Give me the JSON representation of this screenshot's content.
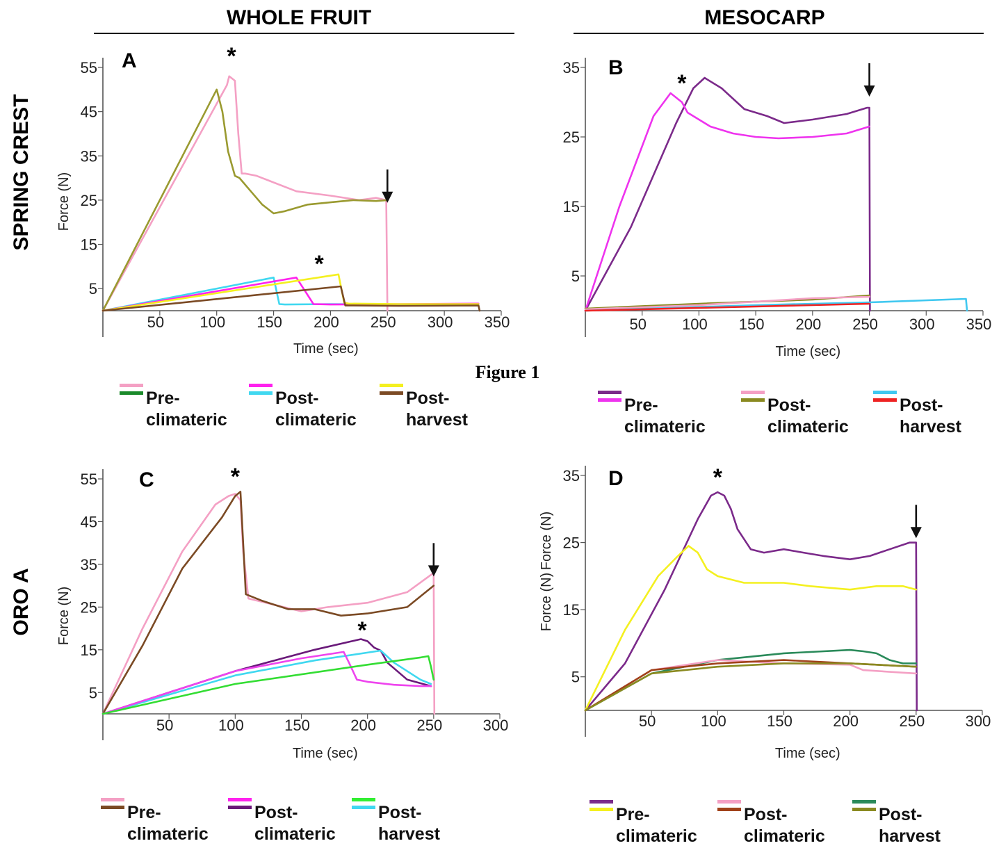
{
  "headers": {
    "left": "WHOLE FRUIT",
    "right": "MESOCARP"
  },
  "row_labels": {
    "top": "SPRING CREST",
    "bottom": "ORO A"
  },
  "figure_caption": "Figure 1",
  "chart_data": [
    {
      "panel": "A",
      "type": "line",
      "xlabel": "Time (sec)",
      "ylabel": "Force (N)",
      "xlim": [
        0,
        350
      ],
      "ylim": [
        0,
        55
      ],
      "xticks": [
        50,
        100,
        150,
        200,
        250,
        300,
        350
      ],
      "yticks": [
        5,
        15,
        25,
        35,
        45,
        55
      ],
      "annotations": [
        {
          "label": "*",
          "x": 113,
          "y": 58
        },
        {
          "label": "*",
          "x": 190,
          "y": 11
        },
        {
          "label": "↓",
          "x": 250,
          "y": 31
        }
      ],
      "legend": [
        {
          "label": "Pre-\nclimateric",
          "colors": [
            "#f4a0c4",
            "#1a8a2a"
          ]
        },
        {
          "label": "Post-\nclimateric",
          "colors": [
            "#ff22ee",
            "#40d8f0"
          ]
        },
        {
          "label": "Post-\nharvest",
          "colors": [
            "#f4f020",
            "#7b4a24"
          ]
        }
      ],
      "series": [
        {
          "color": "#f4a0c4",
          "x": [
            0,
            109,
            111,
            116,
            119,
            122,
            125,
            135,
            150,
            170,
            200,
            225,
            240,
            249,
            250
          ],
          "y": [
            0,
            51,
            53,
            52,
            40,
            31,
            31,
            30.5,
            29,
            27,
            26,
            25,
            25.5,
            25,
            0
          ]
        },
        {
          "color": "#9a9a30",
          "x": [
            0,
            100,
            102,
            105,
            110,
            116,
            120,
            130,
            140,
            150,
            160,
            180,
            200,
            220,
            240,
            250
          ],
          "y": [
            0,
            50,
            48,
            45,
            36,
            30.5,
            30,
            27,
            24,
            22,
            22.5,
            24,
            24.5,
            25,
            24.8,
            25
          ]
        },
        {
          "color": "#40d8f0",
          "x": [
            0,
            150,
            155,
            160,
            200,
            260,
            330
          ],
          "y": [
            0,
            7.5,
            1.5,
            1.4,
            1.5,
            1.4,
            1.5
          ]
        },
        {
          "color": "#ff22ee",
          "x": [
            0,
            170,
            180,
            185,
            200,
            260,
            330
          ],
          "y": [
            0,
            7.5,
            3.5,
            1.5,
            1.4,
            1.5,
            1.6
          ]
        },
        {
          "color": "#f4f020",
          "x": [
            0,
            207,
            212,
            216,
            260,
            330
          ],
          "y": [
            0,
            8.2,
            1.8,
            1.6,
            1.5,
            1.5
          ]
        },
        {
          "color": "#7b4a24",
          "x": [
            0,
            209,
            213,
            217,
            260,
            330,
            331
          ],
          "y": [
            0,
            5.5,
            1.2,
            1.2,
            1.1,
            1.2,
            0
          ]
        }
      ]
    },
    {
      "panel": "B",
      "type": "line",
      "xlabel": "Time (sec)",
      "ylabel": "Force (N)",
      "xlim": [
        0,
        350
      ],
      "ylim": [
        0,
        35
      ],
      "xticks": [
        50,
        100,
        150,
        200,
        250,
        300,
        350
      ],
      "yticks": [
        5,
        15,
        25,
        35
      ],
      "annotations": [
        {
          "label": "*",
          "x": 85,
          "y": 33
        },
        {
          "label": "↓",
          "x": 250,
          "y": 35
        }
      ],
      "legend": [
        {
          "label": "Pre-\nclimateric",
          "colors": [
            "#7b2a8a",
            "#ee33ee"
          ]
        },
        {
          "label": "Post-\nclimateric",
          "colors": [
            "#f4a0c4",
            "#8a8a20"
          ]
        },
        {
          "label": "Post-\nharvest",
          "colors": [
            "#40c8f0",
            "#ee2222"
          ]
        }
      ],
      "series": [
        {
          "color": "#7b2a8a",
          "x": [
            0,
            40,
            80,
            95,
            105,
            120,
            140,
            160,
            175,
            200,
            230,
            248,
            250,
            250.5
          ],
          "y": [
            0,
            12,
            27,
            32,
            33.5,
            32,
            29,
            28,
            27,
            27.5,
            28.3,
            29.2,
            29.2,
            0
          ]
        },
        {
          "color": "#ee33ee",
          "x": [
            0,
            30,
            60,
            75,
            85,
            90,
            110,
            130,
            150,
            170,
            200,
            230,
            250
          ],
          "y": [
            0,
            15,
            28,
            31.3,
            30,
            28.5,
            26.5,
            25.5,
            25,
            24.8,
            25,
            25.5,
            26.5
          ]
        },
        {
          "color": "#8a8a20",
          "x": [
            0,
            100,
            200,
            250
          ],
          "y": [
            0.3,
            1,
            1.6,
            2.2
          ]
        },
        {
          "color": "#f4a0c4",
          "x": [
            0,
            100,
            200,
            250
          ],
          "y": [
            0.2,
            0.8,
            1.8,
            2
          ]
        },
        {
          "color": "#40c8f0",
          "x": [
            0,
            150,
            250,
            335,
            336
          ],
          "y": [
            0,
            0.8,
            1.2,
            1.7,
            0
          ]
        },
        {
          "color": "#ee2222",
          "x": [
            0,
            150,
            250
          ],
          "y": [
            0,
            0.6,
            1
          ]
        }
      ]
    },
    {
      "panel": "C",
      "type": "line",
      "xlabel": "Time (sec)",
      "ylabel": "Force (N)",
      "xlim": [
        0,
        300
      ],
      "ylim": [
        0,
        55
      ],
      "xticks": [
        50,
        100,
        150,
        200,
        250,
        300
      ],
      "yticks": [
        5,
        15,
        25,
        35,
        45,
        55
      ],
      "annotations": [
        {
          "label": "*",
          "x": 100,
          "y": 56
        },
        {
          "label": "*",
          "x": 196,
          "y": 20
        },
        {
          "label": "↓",
          "x": 250,
          "y": 39
        }
      ],
      "legend": [
        {
          "label": "Pre-\nclimateric",
          "colors": [
            "#f4a0c4",
            "#7b4a24"
          ]
        },
        {
          "label": "Post-\nclimateric",
          "colors": [
            "#ff22ee",
            "#6a1a7a"
          ]
        },
        {
          "label": "Post-\nharvest",
          "colors": [
            "#33ee33",
            "#40d8f0"
          ]
        }
      ],
      "series": [
        {
          "color": "#f4a0c4",
          "x": [
            0,
            30,
            60,
            85,
            95,
            100,
            104,
            106,
            110,
            130,
            150,
            170,
            200,
            230,
            250,
            250.5
          ],
          "y": [
            0,
            20,
            38,
            49,
            51,
            51.5,
            50,
            38,
            27,
            25.5,
            24,
            25,
            26,
            28.5,
            33,
            0
          ]
        },
        {
          "color": "#7b4a24",
          "x": [
            0,
            30,
            60,
            90,
            100,
            104,
            106,
            108,
            120,
            140,
            160,
            180,
            200,
            230,
            250
          ],
          "y": [
            0,
            16,
            34,
            46,
            51,
            52,
            40,
            28,
            26.5,
            24.5,
            24.5,
            23,
            23.5,
            25,
            30
          ]
        },
        {
          "color": "#6a1a7a",
          "x": [
            0,
            100,
            160,
            195,
            200,
            205,
            210,
            215,
            230,
            248
          ],
          "y": [
            0,
            10,
            15,
            17.5,
            17,
            15.5,
            14.8,
            12,
            8,
            6.5
          ]
        },
        {
          "color": "#40d8f0",
          "x": [
            0,
            100,
            160,
            210,
            220,
            240,
            248
          ],
          "y": [
            0,
            9,
            12.5,
            14.8,
            12,
            8,
            7
          ]
        },
        {
          "color": "#ee44ee",
          "x": [
            0,
            100,
            150,
            182,
            186,
            192,
            200,
            220,
            240,
            248
          ],
          "y": [
            0,
            10,
            13,
            14.5,
            12,
            8,
            7.5,
            6.8,
            6.5,
            6.5
          ]
        },
        {
          "color": "#33dd33",
          "x": [
            0,
            100,
            200,
            240,
            246,
            248,
            250
          ],
          "y": [
            0,
            7,
            11.5,
            13.2,
            13.5,
            11,
            8
          ]
        }
      ]
    },
    {
      "panel": "D",
      "type": "line",
      "xlabel": "Time (sec)",
      "ylabel": "Force (N)",
      "xlim": [
        0,
        300
      ],
      "ylim": [
        0,
        35
      ],
      "xticks": [
        50,
        100,
        150,
        200,
        250,
        300
      ],
      "yticks": [
        5,
        15,
        25,
        35
      ],
      "annotations": [
        {
          "label": "*",
          "x": 100,
          "y": 35
        },
        {
          "label": "↓",
          "x": 250,
          "y": 30
        }
      ],
      "legend": [
        {
          "label": "Pre-\nclimateric",
          "colors": [
            "#7b2a8a",
            "#f4f020"
          ]
        },
        {
          "label": "Post-\nclimateric",
          "colors": [
            "#f4a0c4",
            "#a0421a"
          ]
        },
        {
          "label": "Post-\nharvest",
          "colors": [
            "#2a8a5a",
            "#8a8a20"
          ]
        }
      ],
      "series": [
        {
          "color": "#7b2a8a",
          "x": [
            0,
            30,
            60,
            85,
            95,
            100,
            105,
            110,
            115,
            125,
            135,
            150,
            165,
            180,
            200,
            215,
            230,
            245,
            250,
            250.5
          ],
          "y": [
            0,
            7,
            18,
            28.5,
            32,
            32.5,
            32,
            30,
            27,
            24,
            23.5,
            24,
            23.5,
            23,
            22.5,
            23,
            24,
            25,
            25,
            0
          ]
        },
        {
          "color": "#f4f020",
          "x": [
            0,
            30,
            55,
            70,
            78,
            85,
            92,
            100,
            120,
            150,
            170,
            200,
            220,
            240,
            250
          ],
          "y": [
            0,
            12,
            20,
            23,
            24.5,
            23.5,
            21,
            20,
            19,
            19,
            18.5,
            18,
            18.5,
            18.5,
            18
          ]
        },
        {
          "color": "#2a8a5a",
          "x": [
            0,
            50,
            100,
            150,
            200,
            210,
            220,
            230,
            240,
            250
          ],
          "y": [
            0,
            5.5,
            7.5,
            8.5,
            9,
            8.8,
            8.5,
            7.5,
            7,
            7
          ]
        },
        {
          "color": "#f4a0c4",
          "x": [
            0,
            50,
            100,
            150,
            200,
            210,
            250
          ],
          "y": [
            0,
            6,
            7.5,
            7,
            6.8,
            6,
            5.5
          ]
        },
        {
          "color": "#a0421a",
          "x": [
            0,
            50,
            100,
            150,
            200,
            250
          ],
          "y": [
            0,
            6,
            7,
            7.5,
            7,
            6.5
          ]
        },
        {
          "color": "#8a8a20",
          "x": [
            0,
            50,
            100,
            150,
            200,
            250
          ],
          "y": [
            0,
            5.5,
            6.5,
            7,
            7,
            6.5
          ]
        }
      ]
    }
  ]
}
